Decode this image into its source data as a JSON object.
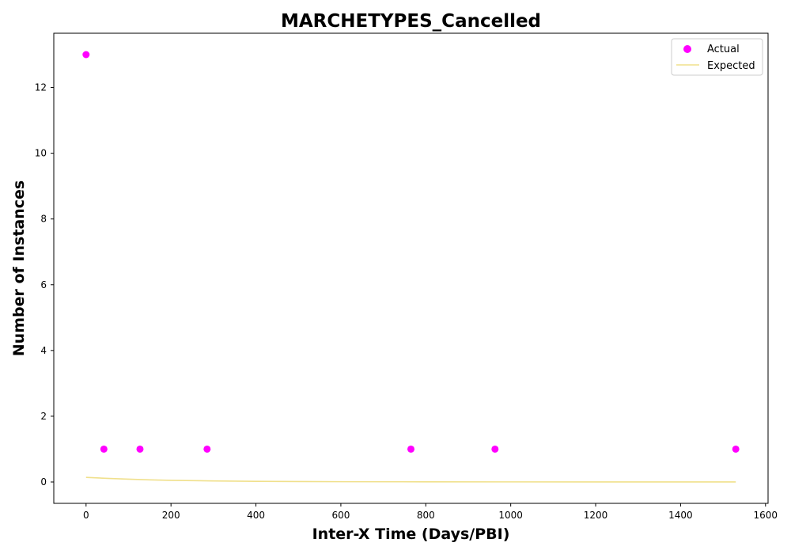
{
  "chart_data": {
    "type": "scatter",
    "title": "MARCHETYPES_Cancelled",
    "xlabel": "Inter-X Time (Days/PBI)",
    "ylabel": "Number of Instances",
    "xlim": [
      -76,
      1606
    ],
    "ylim": [
      -0.65,
      13.65
    ],
    "xticks": [
      0,
      200,
      400,
      600,
      800,
      1000,
      1200,
      1400,
      1600
    ],
    "yticks": [
      0,
      2,
      4,
      6,
      8,
      10,
      12
    ],
    "grid": false,
    "legend_position": "top-right",
    "series": [
      {
        "name": "Actual",
        "kind": "scatter",
        "color": "#ff00ff",
        "x": [
          0,
          42,
          127,
          285,
          765,
          963,
          1530
        ],
        "y": [
          13,
          1,
          1,
          1,
          1,
          1,
          1
        ]
      },
      {
        "name": "Expected",
        "kind": "line",
        "color": "#f0e08c",
        "x": [
          0,
          50,
          100,
          150,
          200,
          300,
          400,
          500,
          600,
          800,
          1000,
          1200,
          1400,
          1530
        ],
        "y": [
          0.14,
          0.11,
          0.085,
          0.065,
          0.05,
          0.032,
          0.02,
          0.014,
          0.009,
          0.005,
          0.003,
          0.002,
          0.001,
          0.001
        ]
      }
    ]
  }
}
